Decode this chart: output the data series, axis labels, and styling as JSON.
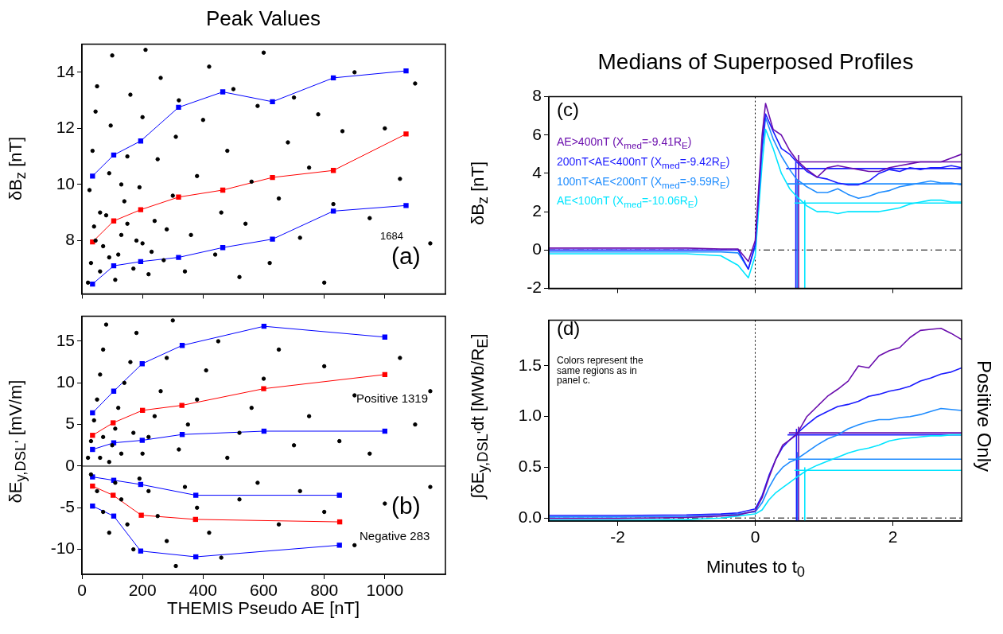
{
  "chart_data": [
    {
      "type": "line",
      "title": "Peak Values",
      "ylabel": "δB$_{z}$ [nT]",
      "xlim": [
        0,
        1200
      ],
      "xticks": [
        0,
        200,
        400,
        600,
        800,
        1000
      ],
      "ylim": [
        6.1,
        15
      ],
      "yticks": [
        8,
        10,
        12,
        14
      ],
      "tick_labels": "y",
      "grid": false,
      "legend": false,
      "annotations": [
        "1684",
        "(a)"
      ],
      "series": [
        {
          "type": "scatter",
          "marker": "circle",
          "color": "#000000",
          "x": [
            20,
            30,
            40,
            25,
            35,
            45,
            50,
            60,
            70,
            80,
            90,
            95,
            100,
            110,
            120,
            130,
            140,
            150,
            160,
            170,
            180,
            190,
            200,
            210,
            220,
            230,
            240,
            250,
            260,
            270,
            280,
            300,
            310,
            320,
            340,
            360,
            380,
            400,
            420,
            440,
            460,
            480,
            500,
            520,
            540,
            560,
            580,
            600,
            620,
            650,
            680,
            700,
            720,
            750,
            780,
            800,
            830,
            860,
            900,
            950,
            1000,
            1050,
            1100,
            1150,
            60,
            150,
            90,
            200,
            130,
            45
          ],
          "values": [
            6.5,
            7.2,
            8.5,
            9.8,
            11.2,
            12.6,
            13.5,
            6.9,
            7.8,
            8.9,
            10.4,
            12.1,
            14.6,
            6.6,
            7.5,
            8.2,
            9.4,
            11.0,
            13.2,
            7.0,
            8.0,
            9.9,
            12.4,
            14.8,
            6.8,
            7.6,
            8.7,
            10.9,
            13.8,
            7.3,
            8.4,
            9.6,
            11.7,
            13.0,
            6.9,
            8.2,
            10.3,
            12.3,
            14.2,
            7.5,
            9.0,
            11.2,
            13.4,
            6.7,
            8.6,
            10.1,
            12.8,
            14.7,
            7.2,
            9.5,
            11.5,
            13.1,
            8.1,
            10.6,
            12.5,
            6.5,
            9.3,
            11.9,
            14.0,
            8.8,
            12.0,
            10.2,
            13.6,
            7.9,
            9.0,
            8.6,
            7.4,
            7.9,
            10.0,
            8.0
          ]
        },
        {
          "marker": "square",
          "color": "#0000ff",
          "x": [
            35,
            105,
            194,
            319,
            465,
            629,
            830,
            1070
          ],
          "values": [
            10.3,
            11.05,
            11.55,
            12.75,
            13.3,
            12.95,
            13.8,
            14.05
          ]
        },
        {
          "marker": "square",
          "color": "#ff0000",
          "x": [
            35,
            105,
            194,
            319,
            465,
            629,
            830,
            1070
          ],
          "values": [
            7.95,
            8.7,
            9.1,
            9.55,
            9.8,
            10.25,
            10.5,
            11.8
          ]
        },
        {
          "marker": "square",
          "color": "#0000ff",
          "x": [
            35,
            105,
            194,
            319,
            465,
            629,
            830,
            1070
          ],
          "values": [
            6.45,
            7.1,
            7.25,
            7.4,
            7.75,
            8.05,
            9.05,
            9.25
          ]
        }
      ]
    },
    {
      "type": "line",
      "xlabel": "THEMIS Pseudo AE [nT]",
      "ylabel": "δE$_{y,DSL'}$ [mV/m]",
      "xlim": [
        0,
        1200
      ],
      "xticks": [
        0,
        200,
        400,
        600,
        800,
        1000
      ],
      "ylim": [
        -13,
        18
      ],
      "yticks": [
        -10,
        -5,
        0,
        5,
        10,
        15
      ],
      "grid": false,
      "legend": false,
      "annotations": [
        "Positive 1319",
        "Negative 283",
        "(b)"
      ],
      "ref_lines": [
        {
          "axis": "y",
          "value": 0,
          "line_style": "solid"
        }
      ],
      "series": [
        {
          "type": "scatter",
          "marker": "circle",
          "color": "#000000",
          "x": [
            20,
            30,
            40,
            50,
            60,
            70,
            80,
            90,
            100,
            110,
            120,
            140,
            160,
            180,
            200,
            220,
            240,
            260,
            280,
            300,
            320,
            350,
            380,
            410,
            450,
            480,
            520,
            560,
            600,
            650,
            700,
            750,
            800,
            850,
            900,
            950,
            1050,
            1100,
            1150,
            60,
            70,
            130,
            170,
            30,
            50,
            70,
            90,
            110,
            130,
            150,
            170,
            190,
            220,
            250,
            280,
            310,
            340,
            380,
            420,
            460,
            520,
            580,
            650,
            720,
            800,
            900,
            1000,
            1150
          ],
          "values": [
            1.0,
            3.0,
            5.5,
            8.0,
            11.0,
            14.0,
            17.0,
            0.5,
            2.5,
            4.5,
            7.0,
            10.0,
            12.5,
            16.0,
            1.5,
            3.5,
            6.0,
            9.0,
            13.0,
            17.5,
            2.0,
            5.0,
            8.0,
            11.5,
            15.0,
            1.0,
            4.0,
            7.0,
            10.5,
            14.0,
            2.5,
            6.0,
            12.0,
            3.0,
            8.5,
            1.5,
            13.0,
            5.0,
            9.0,
            1.0,
            3.5,
            1.5,
            4.0,
            -1.0,
            -3.0,
            -5.5,
            -8.0,
            -2.0,
            -4.0,
            -7.0,
            -10.0,
            -1.5,
            -3.0,
            -6.0,
            -9.0,
            -12.0,
            -2.5,
            -5.0,
            -8.0,
            -11.0,
            -4.0,
            -2.0,
            -7.0,
            -3.0,
            -5.5,
            -9.5,
            -4.5,
            -2.5
          ]
        },
        {
          "marker": "square",
          "color": "#0000ff",
          "x": [
            35,
            105,
            199,
            331,
            601,
            1000
          ],
          "values": [
            6.4,
            9.0,
            12.3,
            14.5,
            16.8,
            15.5
          ]
        },
        {
          "marker": "square",
          "color": "#ff0000",
          "x": [
            35,
            103,
            200,
            330,
            600,
            1000
          ],
          "values": [
            3.7,
            5.2,
            6.7,
            7.3,
            9.3,
            11.0
          ]
        },
        {
          "marker": "square",
          "color": "#0000ff",
          "x": [
            35,
            105,
            199,
            331,
            601,
            1000
          ],
          "values": [
            2.0,
            2.8,
            3.1,
            3.8,
            4.2,
            4.2
          ]
        },
        {
          "marker": "square",
          "color": "#0000ff",
          "x": [
            35,
            105,
            194,
            376,
            850
          ],
          "values": [
            -1.3,
            -1.7,
            -2.2,
            -3.5,
            -3.5
          ]
        },
        {
          "marker": "square",
          "color": "#ff0000",
          "x": [
            35,
            103,
            196,
            375,
            851
          ],
          "values": [
            -2.4,
            -3.5,
            -5.9,
            -6.4,
            -6.7
          ]
        },
        {
          "marker": "square",
          "color": "#0000ff",
          "x": [
            35,
            105,
            194,
            376,
            850
          ],
          "values": [
            -4.8,
            -6.0,
            -10.2,
            -10.9,
            -9.5
          ]
        }
      ]
    },
    {
      "type": "line",
      "title": "Medians of Superposed Profiles",
      "ylabel": "δB$_{z}$ [nT]",
      "xlim": [
        -3,
        3
      ],
      "xticks": [
        -2,
        0,
        2
      ],
      "ylim": [
        -2,
        8
      ],
      "yticks": [
        -2,
        0,
        2,
        4,
        6,
        8
      ],
      "tick_labels": "y",
      "grid": false,
      "legend": "top left",
      "marker": "none",
      "annotations": [
        "(c)"
      ],
      "ref_lines": [
        {
          "axis": "y",
          "value": 0,
          "line_style": "dashed"
        },
        {
          "axis": "x",
          "value": 0,
          "line_style": "dotted"
        }
      ],
      "x": [
        -3,
        -2,
        -1,
        -0.5,
        -0.25,
        -0.1,
        0,
        0.1,
        0.15,
        0.26,
        0.38,
        0.5,
        0.6,
        0.75,
        0.9,
        1.05,
        1.2,
        1.35,
        1.5,
        1.65,
        1.8,
        1.95,
        2.1,
        2.25,
        2.4,
        2.55,
        2.7,
        2.85,
        3
      ],
      "series": [
        {
          "name": "AE>400nT (X$_{med}$=-9.41R$_{E}$)",
          "color": "#6a0dad",
          "values": [
            0.1,
            0.1,
            0.1,
            0.05,
            0.05,
            -0.6,
            0.5,
            6.0,
            7.65,
            6.3,
            6.0,
            5.2,
            4.7,
            4.2,
            3.8,
            4.3,
            4.4,
            4.3,
            4.2,
            4.1,
            4.1,
            4.3,
            4.4,
            4.5,
            4.6,
            4.6,
            4.6,
            4.8,
            5.0
          ]
        },
        {
          "name": "200nT<AE<400nT (X$_{med}$=-9.42R$_{E}$)",
          "color": "#1a1aff",
          "values": [
            0,
            0,
            0,
            0,
            0,
            -1.0,
            0.3,
            5.5,
            7.1,
            6.2,
            5.3,
            5.0,
            4.6,
            4.1,
            3.8,
            3.7,
            3.5,
            3.4,
            3.4,
            3.6,
            4.0,
            4.2,
            4.1,
            4.3,
            4.2,
            4.3,
            4.3,
            4.4,
            4.3
          ]
        },
        {
          "name": "100nT<AE<200nT (X$_{med}$=-9.59R$_{E}$)",
          "color": "#1e8cff",
          "values": [
            -0.1,
            -0.1,
            -0.1,
            -0.1,
            -0.15,
            -1.0,
            0.2,
            5.2,
            6.9,
            5.8,
            4.9,
            4.2,
            3.7,
            3.3,
            3.0,
            3.0,
            3.2,
            2.9,
            2.7,
            2.8,
            3.0,
            3.1,
            3.3,
            3.4,
            3.5,
            3.6,
            3.5,
            3.5,
            3.4
          ]
        },
        {
          "name": "AE<100nT (X$_{med}$=-10.06R$_{E}$)",
          "color": "#00e5ff",
          "values": [
            -0.2,
            -0.2,
            -0.2,
            -0.3,
            -0.8,
            -1.45,
            -0.3,
            4.5,
            6.3,
            5.3,
            4.0,
            3.2,
            2.8,
            2.3,
            2.0,
            2.0,
            1.9,
            2.0,
            2.0,
            2.0,
            2.0,
            2.1,
            2.2,
            2.4,
            2.5,
            2.6,
            2.6,
            2.5,
            2.5
          ]
        },
        {
          "color": "#6a0dad",
          "x": [
            0.63,
            3
          ],
          "values": [
            4.6,
            4.6
          ]
        },
        {
          "color": "#1a1aff",
          "x": [
            0.45,
            3
          ],
          "values": [
            4.25,
            4.25
          ]
        },
        {
          "color": "#1e8cff",
          "x": [
            0.47,
            3
          ],
          "values": [
            3.45,
            3.45
          ]
        },
        {
          "color": "#00e5ff",
          "x": [
            0.57,
            3
          ],
          "values": [
            2.45,
            2.45
          ]
        },
        {
          "color": "#6a0dad",
          "x": [
            0.63,
            0.63
          ],
          "values": [
            -2,
            4.95
          ]
        },
        {
          "color": "#1a1aff",
          "x": [
            0.59,
            0.59
          ],
          "values": [
            -2,
            4.6
          ]
        },
        {
          "color": "#1e8cff",
          "x": [
            0.61,
            0.61
          ],
          "values": [
            -2,
            3.65
          ]
        },
        {
          "color": "#00e5ff",
          "x": [
            0.72,
            0.72
          ],
          "values": [
            -2,
            2.6
          ]
        }
      ]
    },
    {
      "type": "line",
      "xlabel": "Minutes to t$_{0}$",
      "ylabel": "∫δE$_{y,DSL'}$dt [MWb/R$_{E}$]",
      "xlim": [
        -3,
        3
      ],
      "xticks": [
        -2,
        0,
        2
      ],
      "ylim": [
        -0.03,
        1.95
      ],
      "yticks": [
        {
          "value": 0,
          "label": "0.0"
        },
        {
          "value": 0.5,
          "label": "0.5"
        },
        {
          "value": 1,
          "label": "1.0"
        },
        {
          "value": 1.5,
          "label": "1.5"
        }
      ],
      "grid": false,
      "legend": false,
      "marker": "none",
      "annotations": [
        "(d)",
        "Colors represent the same regions as in panel c.",
        "Positive Only"
      ],
      "ref_lines": [
        {
          "axis": "y",
          "value": 0,
          "line_style": "dashed"
        },
        {
          "axis": "x",
          "value": 0,
          "line_style": "dotted"
        }
      ],
      "x": [
        -3,
        -2,
        -1,
        -0.5,
        -0.25,
        0,
        0.1,
        0.2,
        0.3,
        0.4,
        0.5,
        0.6,
        0.75,
        0.9,
        1.05,
        1.2,
        1.35,
        1.5,
        1.65,
        1.8,
        1.95,
        2.1,
        2.25,
        2.4,
        2.55,
        2.7,
        2.85,
        3
      ],
      "series": [
        {
          "color": "#6a0dad",
          "values": [
            -0.005,
            -0.005,
            0.005,
            0.02,
            0.03,
            0.07,
            0.2,
            0.4,
            0.58,
            0.72,
            0.77,
            0.82,
            1.0,
            1.1,
            1.2,
            1.27,
            1.35,
            1.5,
            1.48,
            1.6,
            1.65,
            1.68,
            1.78,
            1.85,
            1.86,
            1.87,
            1.82,
            1.76
          ]
        },
        {
          "color": "#1a1aff",
          "values": [
            0.025,
            0.025,
            0.03,
            0.04,
            0.05,
            0.09,
            0.22,
            0.42,
            0.58,
            0.7,
            0.77,
            0.83,
            0.92,
            1.0,
            1.05,
            1.1,
            1.12,
            1.15,
            1.2,
            1.22,
            1.25,
            1.27,
            1.3,
            1.35,
            1.38,
            1.42,
            1.44,
            1.48
          ]
        },
        {
          "color": "#1e8cff",
          "values": [
            0.01,
            0.01,
            0.015,
            0.025,
            0.04,
            0.06,
            0.15,
            0.3,
            0.42,
            0.5,
            0.55,
            0.58,
            0.65,
            0.72,
            0.78,
            0.82,
            0.88,
            0.92,
            0.95,
            0.97,
            0.97,
            0.99,
            1.0,
            1.02,
            1.05,
            1.08,
            1.07,
            1.06
          ]
        },
        {
          "color": "#00e5ff",
          "values": [
            -0.02,
            -0.02,
            -0.015,
            0.0,
            0.02,
            0.04,
            0.08,
            0.18,
            0.25,
            0.3,
            0.35,
            0.4,
            0.47,
            0.52,
            0.56,
            0.6,
            0.64,
            0.67,
            0.69,
            0.72,
            0.76,
            0.78,
            0.79,
            0.8,
            0.81,
            0.81,
            0.82,
            0.82
          ]
        },
        {
          "color": "#6a0dad",
          "x": [
            0.49,
            3
          ],
          "values": [
            0.84,
            0.84
          ]
        },
        {
          "color": "#1a1aff",
          "x": [
            0.47,
            3
          ],
          "values": [
            0.82,
            0.82
          ]
        },
        {
          "color": "#1e8cff",
          "x": [
            0.48,
            3
          ],
          "values": [
            0.58,
            0.58
          ]
        },
        {
          "color": "#00e5ff",
          "x": [
            0.57,
            3
          ],
          "values": [
            0.47,
            0.47
          ]
        },
        {
          "color": "#6a0dad",
          "x": [
            0.63,
            0.63
          ],
          "values": [
            -0.03,
            0.9
          ]
        },
        {
          "color": "#1a1aff",
          "x": [
            0.6,
            0.6
          ],
          "values": [
            -0.03,
            0.88
          ]
        },
        {
          "color": "#1e8cff",
          "x": [
            0.61,
            0.61
          ],
          "values": [
            -0.03,
            0.65
          ]
        },
        {
          "color": "#00e5ff",
          "x": [
            0.72,
            0.72
          ],
          "values": [
            -0.03,
            0.5
          ]
        }
      ]
    }
  ]
}
